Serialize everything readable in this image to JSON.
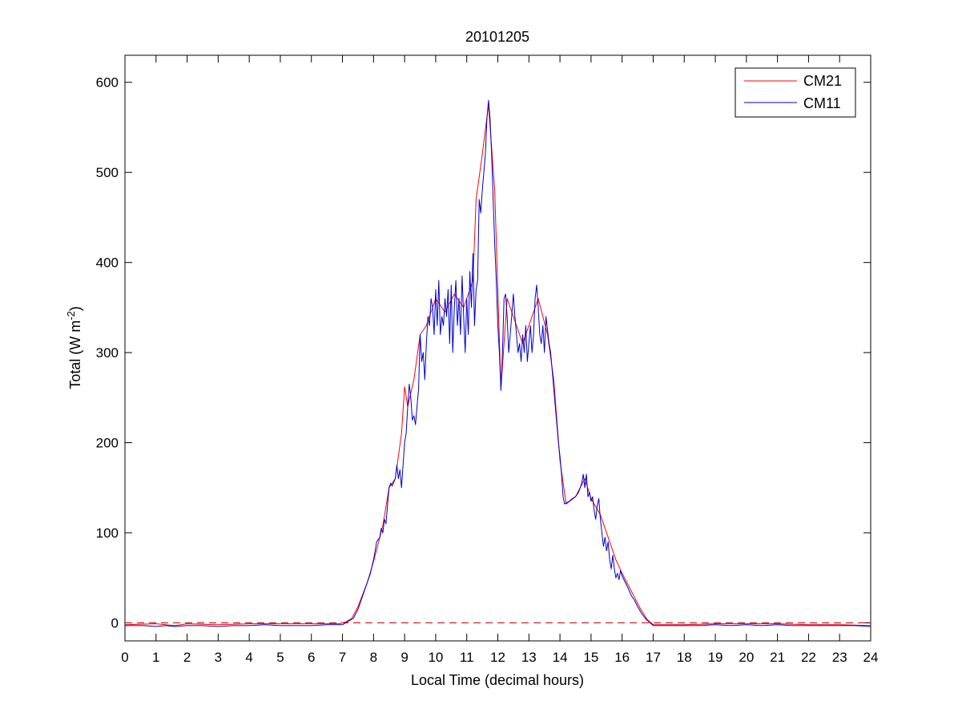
{
  "chart_data": {
    "type": "line",
    "title": "20101205",
    "xlabel": "Local Time (decimal hours)",
    "ylabel": {
      "prefix": "Total (W m",
      "superscript": "-2",
      "suffix": ")"
    },
    "xlim": [
      0,
      24
    ],
    "ylim": [
      -20,
      630
    ],
    "xticks": [
      0,
      1,
      2,
      3,
      4,
      5,
      6,
      7,
      8,
      9,
      10,
      11,
      12,
      13,
      14,
      15,
      16,
      17,
      18,
      19,
      20,
      21,
      22,
      23,
      24
    ],
    "yticks": [
      0,
      100,
      200,
      300,
      400,
      500,
      600
    ],
    "grid": false,
    "box": true,
    "legend_position": "top-right",
    "zero_reference_line": {
      "y": 0,
      "color": "#cc0000",
      "style": "dashed"
    },
    "series": [
      {
        "name": "CM21",
        "color": "#ff0000",
        "points": [
          [
            0,
            -2
          ],
          [
            1,
            -1
          ],
          [
            1.6,
            -3
          ],
          [
            2,
            -1
          ],
          [
            3,
            -2
          ],
          [
            4,
            -1
          ],
          [
            5,
            -1
          ],
          [
            6,
            -1
          ],
          [
            6.9,
            -1
          ],
          [
            7.0,
            0
          ],
          [
            7.1,
            1
          ],
          [
            7.3,
            5
          ],
          [
            7.5,
            18
          ],
          [
            7.8,
            45
          ],
          [
            8.0,
            68
          ],
          [
            8.3,
            108
          ],
          [
            8.5,
            150
          ],
          [
            8.7,
            160
          ],
          [
            8.9,
            210
          ],
          [
            9.0,
            262
          ],
          [
            9.1,
            240
          ],
          [
            9.3,
            270
          ],
          [
            9.5,
            320
          ],
          [
            9.7,
            330
          ],
          [
            10.0,
            360
          ],
          [
            10.3,
            345
          ],
          [
            10.6,
            365
          ],
          [
            10.9,
            350
          ],
          [
            11.2,
            380
          ],
          [
            11.3,
            470
          ],
          [
            11.5,
            520
          ],
          [
            11.7,
            575
          ],
          [
            11.9,
            480
          ],
          [
            12.1,
            260
          ],
          [
            12.3,
            360
          ],
          [
            12.5,
            340
          ],
          [
            12.8,
            310
          ],
          [
            13.0,
            330
          ],
          [
            13.3,
            360
          ],
          [
            13.6,
            320
          ],
          [
            13.8,
            270
          ],
          [
            14.0,
            180
          ],
          [
            14.2,
            132
          ],
          [
            14.5,
            140
          ],
          [
            14.8,
            160
          ],
          [
            15.0,
            138
          ],
          [
            15.3,
            120
          ],
          [
            15.6,
            90
          ],
          [
            15.8,
            70
          ],
          [
            16.0,
            55
          ],
          [
            16.3,
            35
          ],
          [
            16.6,
            15
          ],
          [
            16.8,
            4
          ],
          [
            17.0,
            -2
          ],
          [
            18,
            -2
          ],
          [
            19,
            -1
          ],
          [
            20,
            -1
          ],
          [
            21,
            -1
          ],
          [
            22,
            -2
          ],
          [
            23,
            -2
          ],
          [
            24,
            -3
          ]
        ]
      },
      {
        "name": "CM11",
        "color": "#0000cc",
        "points": [
          [
            0,
            -3
          ],
          [
            0.3,
            -3
          ],
          [
            0.6,
            -3
          ],
          [
            1.0,
            -4
          ],
          [
            1.3,
            -3
          ],
          [
            1.6,
            -4
          ],
          [
            2.0,
            -3
          ],
          [
            2.5,
            -3
          ],
          [
            3.0,
            -4
          ],
          [
            3.5,
            -3
          ],
          [
            4.0,
            -3
          ],
          [
            4.5,
            -2
          ],
          [
            5.0,
            -3
          ],
          [
            5.5,
            -3
          ],
          [
            6.0,
            -3
          ],
          [
            6.5,
            -2
          ],
          [
            7.0,
            -2
          ],
          [
            7.1,
            0
          ],
          [
            7.2,
            2
          ],
          [
            7.35,
            5
          ],
          [
            7.5,
            15
          ],
          [
            7.6,
            25
          ],
          [
            7.7,
            35
          ],
          [
            7.8,
            45
          ],
          [
            7.9,
            55
          ],
          [
            8.0,
            70
          ],
          [
            8.1,
            90
          ],
          [
            8.2,
            95
          ],
          [
            8.25,
            105
          ],
          [
            8.3,
            100
          ],
          [
            8.35,
            115
          ],
          [
            8.4,
            110
          ],
          [
            8.5,
            150
          ],
          [
            8.55,
            155
          ],
          [
            8.6,
            152
          ],
          [
            8.7,
            160
          ],
          [
            8.75,
            175
          ],
          [
            8.8,
            160
          ],
          [
            8.85,
            170
          ],
          [
            8.9,
            150
          ],
          [
            9.0,
            200
          ],
          [
            9.05,
            210
          ],
          [
            9.1,
            240
          ],
          [
            9.15,
            265
          ],
          [
            9.2,
            250
          ],
          [
            9.25,
            225
          ],
          [
            9.3,
            230
          ],
          [
            9.35,
            220
          ],
          [
            9.4,
            240
          ],
          [
            9.45,
            260
          ],
          [
            9.5,
            320
          ],
          [
            9.55,
            290
          ],
          [
            9.6,
            300
          ],
          [
            9.65,
            270
          ],
          [
            9.7,
            310
          ],
          [
            9.75,
            340
          ],
          [
            9.8,
            330
          ],
          [
            9.85,
            360
          ],
          [
            9.9,
            350
          ],
          [
            9.95,
            320
          ],
          [
            10.0,
            370
          ],
          [
            10.05,
            330
          ],
          [
            10.1,
            380
          ],
          [
            10.15,
            320
          ],
          [
            10.2,
            340
          ],
          [
            10.25,
            330
          ],
          [
            10.3,
            360
          ],
          [
            10.35,
            340
          ],
          [
            10.4,
            370
          ],
          [
            10.45,
            310
          ],
          [
            10.5,
            375
          ],
          [
            10.55,
            300
          ],
          [
            10.6,
            350
          ],
          [
            10.65,
            380
          ],
          [
            10.7,
            330
          ],
          [
            10.75,
            360
          ],
          [
            10.8,
            320
          ],
          [
            10.85,
            385
          ],
          [
            10.9,
            340
          ],
          [
            10.95,
            300
          ],
          [
            11.0,
            360
          ],
          [
            11.05,
            320
          ],
          [
            11.1,
            390
          ],
          [
            11.15,
            350
          ],
          [
            11.2,
            410
          ],
          [
            11.25,
            330
          ],
          [
            11.3,
            370
          ],
          [
            11.35,
            380
          ],
          [
            11.4,
            470
          ],
          [
            11.45,
            455
          ],
          [
            11.5,
            480
          ],
          [
            11.55,
            500
          ],
          [
            11.6,
            520
          ],
          [
            11.65,
            560
          ],
          [
            11.7,
            580
          ],
          [
            11.75,
            560
          ],
          [
            11.8,
            520
          ],
          [
            11.85,
            470
          ],
          [
            11.9,
            420
          ],
          [
            11.95,
            380
          ],
          [
            12.0,
            330
          ],
          [
            12.05,
            300
          ],
          [
            12.1,
            258
          ],
          [
            12.15,
            300
          ],
          [
            12.2,
            360
          ],
          [
            12.25,
            365
          ],
          [
            12.3,
            340
          ],
          [
            12.35,
            300
          ],
          [
            12.4,
            320
          ],
          [
            12.5,
            365
          ],
          [
            12.55,
            340
          ],
          [
            12.6,
            320
          ],
          [
            12.65,
            300
          ],
          [
            12.7,
            310
          ],
          [
            12.75,
            290
          ],
          [
            12.8,
            320
          ],
          [
            12.85,
            300
          ],
          [
            12.9,
            330
          ],
          [
            12.95,
            290
          ],
          [
            13.0,
            310
          ],
          [
            13.05,
            330
          ],
          [
            13.1,
            300
          ],
          [
            13.15,
            320
          ],
          [
            13.2,
            360
          ],
          [
            13.25,
            375
          ],
          [
            13.3,
            350
          ],
          [
            13.35,
            320
          ],
          [
            13.4,
            310
          ],
          [
            13.45,
            330
          ],
          [
            13.5,
            300
          ],
          [
            13.55,
            340
          ],
          [
            13.6,
            325
          ],
          [
            13.65,
            310
          ],
          [
            13.7,
            300
          ],
          [
            13.75,
            280
          ],
          [
            13.8,
            260
          ],
          [
            13.85,
            240
          ],
          [
            13.9,
            220
          ],
          [
            13.95,
            200
          ],
          [
            14.0,
            185
          ],
          [
            14.05,
            165
          ],
          [
            14.1,
            140
          ],
          [
            14.15,
            132
          ],
          [
            14.2,
            133
          ],
          [
            14.3,
            135
          ],
          [
            14.4,
            138
          ],
          [
            14.5,
            140
          ],
          [
            14.6,
            145
          ],
          [
            14.7,
            155
          ],
          [
            14.75,
            165
          ],
          [
            14.8,
            150
          ],
          [
            14.85,
            165
          ],
          [
            14.9,
            140
          ],
          [
            14.95,
            145
          ],
          [
            15.0,
            135
          ],
          [
            15.05,
            140
          ],
          [
            15.1,
            125
          ],
          [
            15.15,
            115
          ],
          [
            15.2,
            130
          ],
          [
            15.25,
            138
          ],
          [
            15.3,
            115
          ],
          [
            15.35,
            100
          ],
          [
            15.4,
            85
          ],
          [
            15.45,
            95
          ],
          [
            15.5,
            80
          ],
          [
            15.55,
            90
          ],
          [
            15.6,
            70
          ],
          [
            15.65,
            60
          ],
          [
            15.7,
            75
          ],
          [
            15.75,
            60
          ],
          [
            15.8,
            50
          ],
          [
            15.85,
            55
          ],
          [
            15.9,
            48
          ],
          [
            15.95,
            58
          ],
          [
            16.0,
            52
          ],
          [
            16.1,
            45
          ],
          [
            16.2,
            38
          ],
          [
            16.3,
            30
          ],
          [
            16.4,
            25
          ],
          [
            16.5,
            18
          ],
          [
            16.6,
            12
          ],
          [
            16.7,
            7
          ],
          [
            16.8,
            3
          ],
          [
            16.9,
            0
          ],
          [
            17.0,
            -3
          ],
          [
            17.5,
            -3
          ],
          [
            18.0,
            -3
          ],
          [
            18.5,
            -3
          ],
          [
            19.0,
            -2
          ],
          [
            19.5,
            -3
          ],
          [
            20.0,
            -2
          ],
          [
            20.5,
            -3
          ],
          [
            21.0,
            -2
          ],
          [
            21.5,
            -3
          ],
          [
            22.0,
            -3
          ],
          [
            22.5,
            -3
          ],
          [
            23.0,
            -3
          ],
          [
            23.5,
            -3
          ],
          [
            24.0,
            -4
          ]
        ]
      }
    ]
  },
  "colors": {
    "axes": "#000000",
    "background": "#ffffff"
  }
}
